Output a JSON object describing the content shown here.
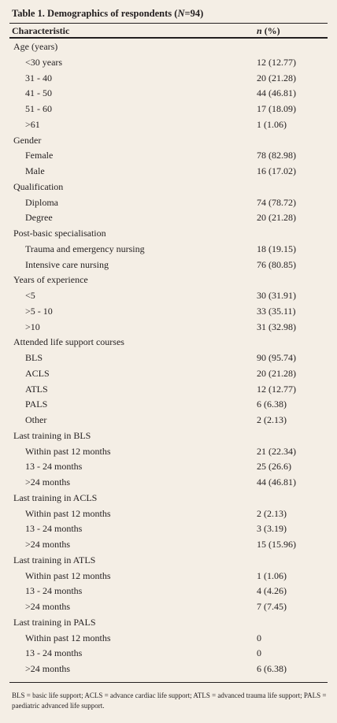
{
  "table": {
    "title": [
      "Table 1. Demographics of respondents (",
      "N",
      "=94)"
    ],
    "header": {
      "characteristic": "Characteristic",
      "n": [
        "n",
        " (%)"
      ]
    },
    "groups": [
      {
        "label": "Age (years)",
        "rows": [
          [
            "<30 years",
            "12 (12.77)"
          ],
          [
            "31 - 40",
            "20 (21.28)"
          ],
          [
            "41 - 50",
            "44 (46.81)"
          ],
          [
            "51 - 60",
            "17 (18.09)"
          ],
          [
            ">61",
            "1 (1.06)"
          ]
        ]
      },
      {
        "label": "Gender",
        "rows": [
          [
            "Female",
            "78 (82.98)"
          ],
          [
            "Male",
            "16 (17.02)"
          ]
        ]
      },
      {
        "label": "Qualification",
        "rows": [
          [
            "Diploma",
            "74 (78.72)"
          ],
          [
            "Degree",
            "20 (21.28)"
          ]
        ]
      },
      {
        "label": "Post-basic specialisation",
        "rows": [
          [
            "Trauma and emergency nursing",
            "18 (19.15)"
          ],
          [
            "Intensive care nursing",
            "76 (80.85)"
          ]
        ]
      },
      {
        "label": "Years of experience",
        "rows": [
          [
            "<5",
            "30 (31.91)"
          ],
          [
            ">5 - 10",
            "33 (35.11)"
          ],
          [
            ">10",
            "31 (32.98)"
          ]
        ]
      },
      {
        "label": "Attended life support courses",
        "rows": [
          [
            "BLS",
            "90 (95.74)"
          ],
          [
            "ACLS",
            "20 (21.28)"
          ],
          [
            "ATLS",
            "12 (12.77)"
          ],
          [
            "PALS",
            "6 (6.38)"
          ],
          [
            "Other",
            "2 (2.13)"
          ]
        ]
      },
      {
        "label": "Last training in BLS",
        "rows": [
          [
            "Within past 12 months",
            "21 (22.34)"
          ],
          [
            "13 - 24 months",
            "25 (26.6)"
          ],
          [
            ">24 months",
            "44 (46.81)"
          ]
        ]
      },
      {
        "label": "Last training in ACLS",
        "rows": [
          [
            "Within past 12 months",
            "2 (2.13)"
          ],
          [
            "13 - 24 months",
            "3 (3.19)"
          ],
          [
            ">24 months",
            "15 (15.96)"
          ]
        ]
      },
      {
        "label": "Last training in ATLS",
        "rows": [
          [
            "Within past 12 months",
            "1 (1.06)"
          ],
          [
            "13 - 24 months",
            "4 (4.26)"
          ],
          [
            ">24 months",
            "7 (7.45)"
          ]
        ]
      },
      {
        "label": "Last training in PALS",
        "rows": [
          [
            "Within past 12 months",
            "0"
          ],
          [
            "13 - 24 months",
            "0"
          ],
          [
            ">24 months",
            "6 (6.38)"
          ]
        ]
      }
    ],
    "footnote": "BLS = basic life support; ACLS = advance cardiac life support; ATLS = advanced trauma life support; PALS = paediatric advanced life support."
  }
}
